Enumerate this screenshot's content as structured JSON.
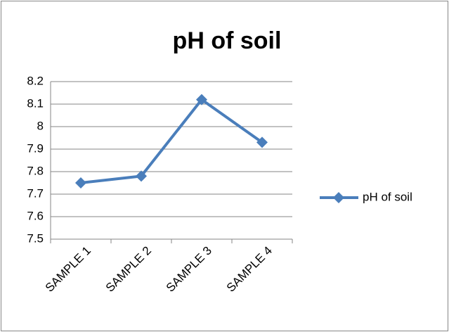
{
  "chart_data": {
    "type": "line",
    "title": "pH of soil",
    "categories": [
      "SAMPLE 1",
      "SAMPLE 2",
      "SAMPLE 3",
      "SAMPLE 4"
    ],
    "series": [
      {
        "name": "pH of soil",
        "color": "#4a7ebb",
        "values": [
          7.75,
          7.78,
          8.12,
          7.93
        ]
      }
    ],
    "ylim": [
      7.5,
      8.2
    ],
    "yticks": [
      7.5,
      7.6,
      7.7,
      7.8,
      7.9,
      8,
      8.1,
      8.2
    ],
    "grid": true,
    "legend": "right"
  }
}
